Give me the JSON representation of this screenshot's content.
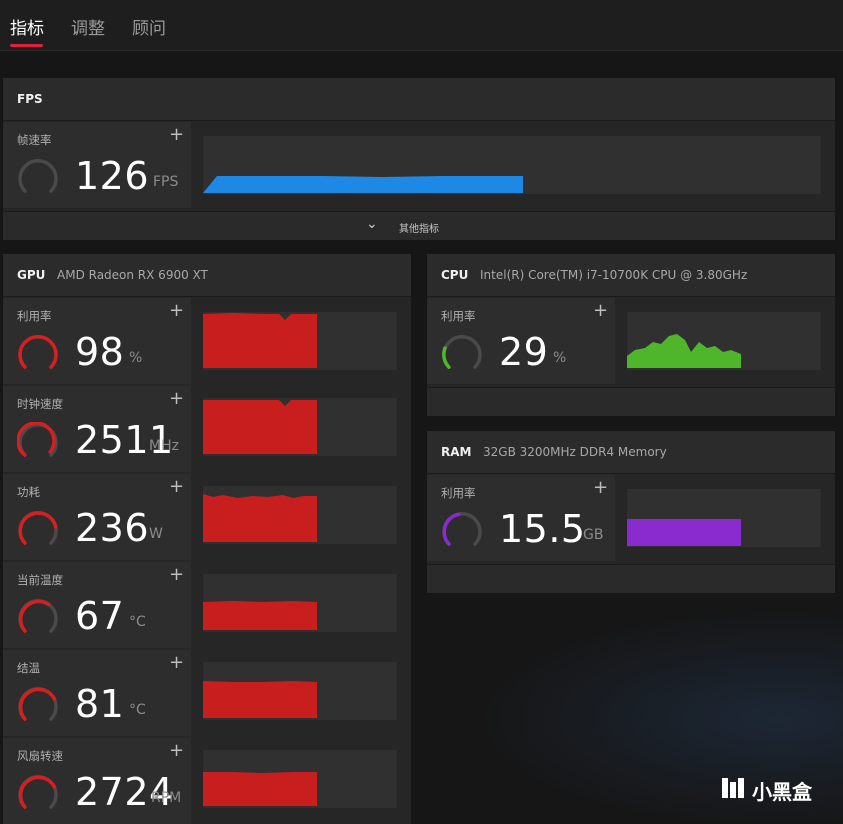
{
  "tabs": [
    {
      "label": "指标",
      "active": true
    },
    {
      "label": "调整",
      "active": false
    },
    {
      "label": "顾问",
      "active": false
    }
  ],
  "fps_panel": {
    "title": "FPS",
    "more_label": "其他指标",
    "metric": {
      "label": "帧速率",
      "value": "126",
      "unit": "FPS",
      "color": "#1e88e5",
      "gauge_level": 0.0
    }
  },
  "gpu_panel": {
    "title": "GPU",
    "subtitle": "AMD Radeon RX 6900 XT",
    "metrics": [
      {
        "label": "利用率",
        "value": "98",
        "unit": "%",
        "color": "#d42020",
        "gauge_level": 0.98
      },
      {
        "label": "时钟速度",
        "value": "2511",
        "unit": "MHz",
        "color": "#d42020",
        "gauge_level": 0.95
      },
      {
        "label": "功耗",
        "value": "236",
        "unit": "W",
        "color": "#d42020",
        "gauge_level": 0.82
      },
      {
        "label": "当前温度",
        "value": "67",
        "unit": "°C",
        "color": "#d42020",
        "gauge_level": 0.68
      },
      {
        "label": "结温",
        "value": "81",
        "unit": "°C",
        "color": "#d42020",
        "gauge_level": 0.8
      },
      {
        "label": "风扇转速",
        "value": "2724",
        "unit": "RPM",
        "color": "#d42020",
        "gauge_level": 0.8
      }
    ]
  },
  "cpu_panel": {
    "title": "CPU",
    "subtitle": "Intel(R) Core(TM) i7-10700K CPU @ 3.80GHz",
    "metric": {
      "label": "利用率",
      "value": "29",
      "unit": "%",
      "color": "#4fb52a",
      "gauge_level": 0.29
    }
  },
  "ram_panel": {
    "title": "RAM",
    "subtitle": "32GB 3200MHz DDR4 Memory",
    "metric": {
      "label": "利用率",
      "value": "15.5",
      "unit": "GB",
      "color": "#8a2bd0",
      "gauge_level": 0.48
    }
  },
  "watermark": {
    "text": "小黑盒"
  }
}
